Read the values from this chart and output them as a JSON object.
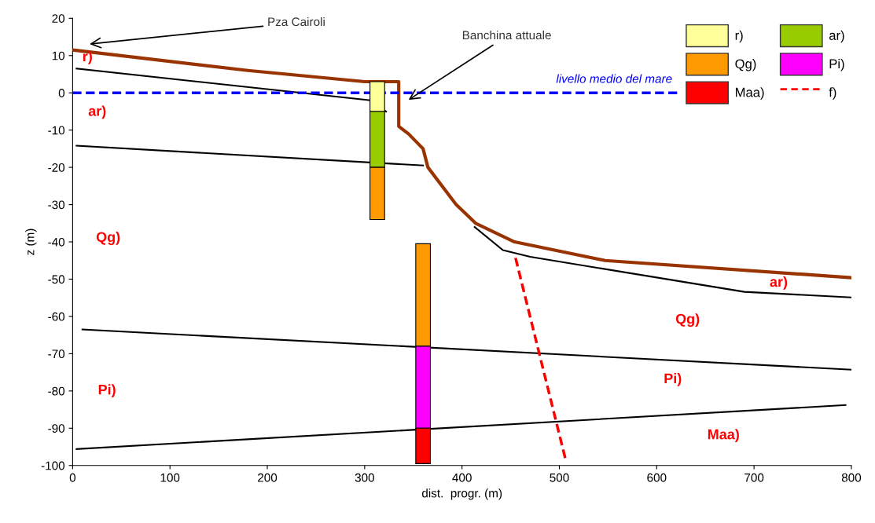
{
  "chart_data": {
    "type": "line",
    "xlabel": "dist.  progr. (m)",
    "ylabel": "z (m)",
    "xlim": [
      0,
      800
    ],
    "ylim": [
      -100,
      20
    ],
    "xticks": [
      0,
      100,
      200,
      300,
      400,
      500,
      600,
      700,
      800
    ],
    "yticks": [
      -100,
      -90,
      -80,
      -70,
      -60,
      -50,
      -40,
      -30,
      -20,
      -10,
      0,
      10,
      20
    ],
    "grid": false,
    "legend": "top right",
    "series": [
      {
        "color": "#993300",
        "x": [
          0,
          180,
          300,
          335,
          335,
          345,
          360,
          365,
          394,
          414,
          454,
          547,
          800
        ],
        "values": [
          11.5,
          6,
          3,
          3,
          -9,
          -11,
          -15,
          -20,
          -30,
          -35,
          -40,
          -45,
          -49.6
        ]
      },
      {
        "color": "#000000",
        "x": [
          4,
          306,
          322
        ],
        "values": [
          6.5,
          -2,
          -5
        ]
      },
      {
        "color": "#000000",
        "x": [
          4,
          360
        ],
        "values": [
          -14.2,
          -19.5
        ]
      },
      {
        "color": "#000000",
        "x": [
          413,
          442,
          470,
          690,
          800
        ],
        "values": [
          -36,
          -42.2,
          -44,
          -53.4,
          -54.9
        ]
      },
      {
        "color": "#000000",
        "x": [
          10,
          800
        ],
        "values": [
          -63.5,
          -74.3
        ]
      },
      {
        "color": "#000000",
        "x": [
          4,
          794
        ],
        "values": [
          -95.6,
          -83.8
        ]
      },
      {
        "name": "livello medio del mare",
        "color": "#0000ff",
        "line_style": "dashed",
        "x": [
          0,
          621
        ],
        "values": [
          0,
          0
        ]
      },
      {
        "type": "bar",
        "name": "r)",
        "color": "#ffff99",
        "x": [
          313
        ],
        "base": [
          3
        ],
        "values": [
          -8
        ]
      },
      {
        "type": "bar",
        "name": "ar)",
        "color": "#99cc00",
        "x": [
          313
        ],
        "base": [
          -5
        ],
        "values": [
          -15
        ]
      },
      {
        "type": "bar",
        "name": "Qg)",
        "color": "#ff9900",
        "x": [
          313,
          360
        ],
        "base": [
          -20,
          -40.5
        ],
        "values": [
          -14,
          -27.5
        ]
      },
      {
        "type": "bar",
        "name": "Pi)",
        "color": "#ff00ff",
        "x": [
          360
        ],
        "base": [
          -68
        ],
        "values": [
          -22
        ]
      },
      {
        "type": "bar",
        "name": "Maa)",
        "color": "#ff0000",
        "x": [
          360
        ],
        "base": [
          -90
        ],
        "values": [
          -9.5
        ]
      },
      {
        "name": "f)",
        "color": "#ff0000",
        "line_style": "dashed",
        "x": [
          455,
          506
        ],
        "values": [
          -44.3,
          -98
        ]
      }
    ],
    "annotations": [
      "Pza Cairoli",
      "Banchina attuale",
      "r)",
      "ar)",
      "Qg)",
      "Pi)",
      "Qg)",
      "ar)",
      "Pi)",
      "Maa)"
    ]
  }
}
